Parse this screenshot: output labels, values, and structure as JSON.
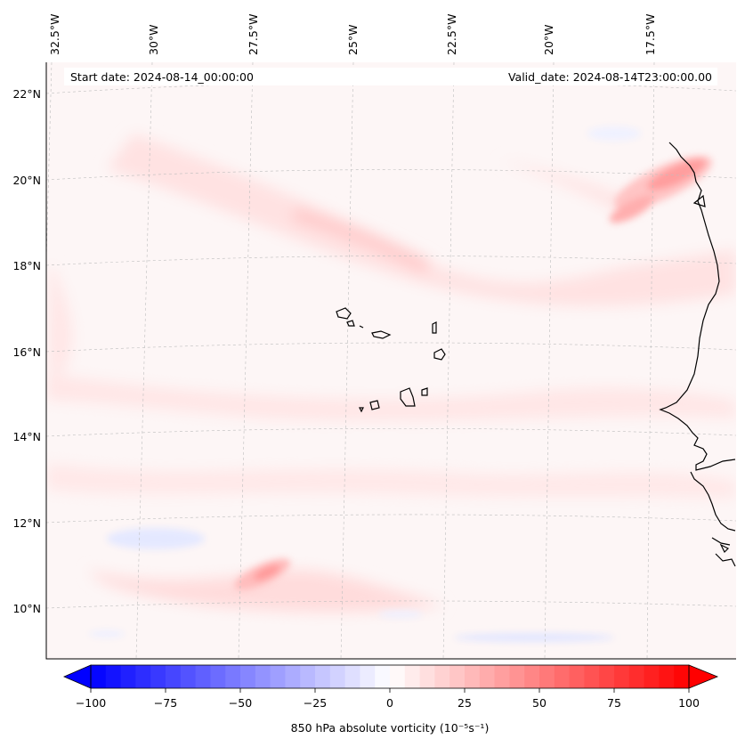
{
  "map": {
    "start_date": "Start date: 2024-08-14_00:00:00",
    "valid_date": "Valid_date: 2024-08-14T23:00:00.00",
    "lon_labels": [
      "32.5°W",
      "30°W",
      "27.5°W",
      "25°W",
      "22.5°W",
      "20°W",
      "17.5°W"
    ],
    "lat_labels": [
      "22°N",
      "20°N",
      "18°N",
      "16°N",
      "14°N",
      "12°N",
      "10°N"
    ],
    "colors": {
      "background_field": "#fdf6f6",
      "positive": "#ff0000",
      "negative": "#0000ff",
      "coastline": "#000000",
      "grid": "#bbbbbb"
    }
  },
  "colorbar": {
    "label": "850 hPa absolute vorticity (10⁻⁵s⁻¹)",
    "ticks": [
      "−100",
      "−75",
      "−50",
      "−25",
      "0",
      "25",
      "50",
      "75",
      "100"
    ],
    "min": -100,
    "max": 100,
    "step": 5
  }
}
